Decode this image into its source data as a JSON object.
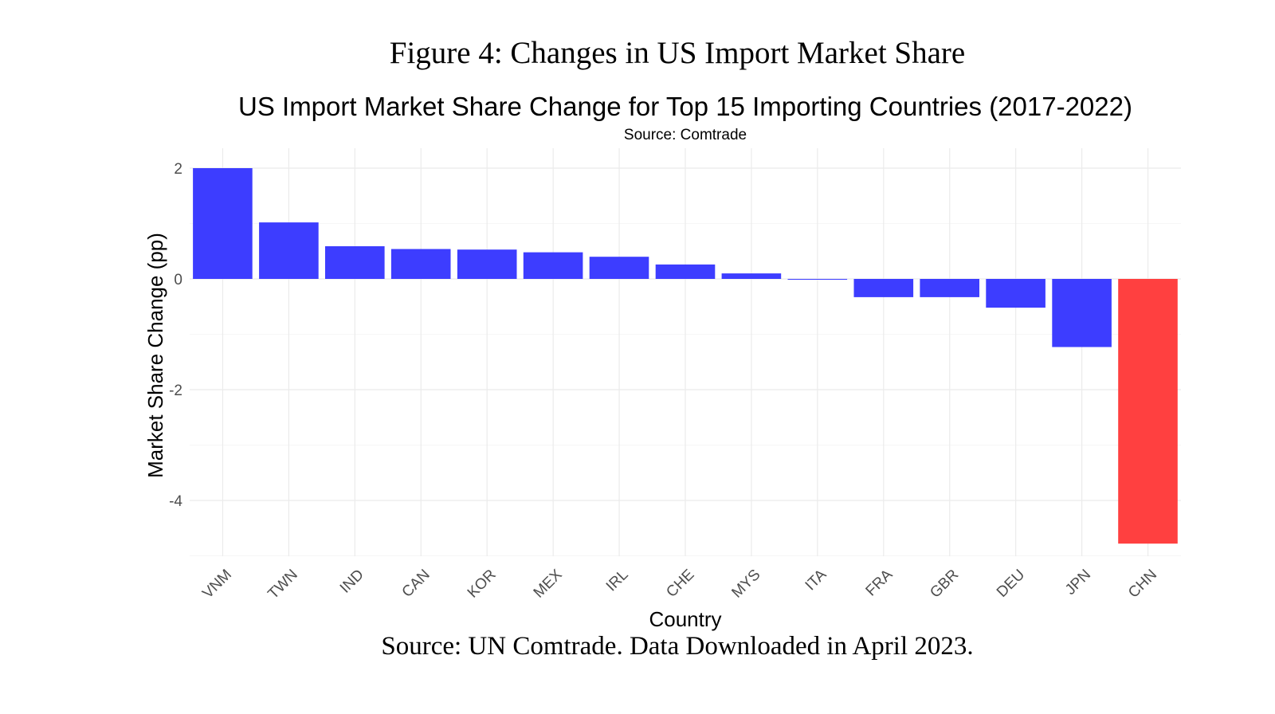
{
  "figure": {
    "title": "Figure 4: Changes in US Import Market Share",
    "caption": "Source: UN Comtrade. Data Downloaded in April 2023."
  },
  "chart_data": {
    "type": "bar",
    "title": "US Import Market Share Change for Top 15 Importing Countries (2017-2022)",
    "subtitle": "Source: Comtrade",
    "xlabel": "Country",
    "ylabel": "Market Share Change (pp)",
    "categories": [
      "VNM",
      "TWN",
      "IND",
      "CAN",
      "KOR",
      "MEX",
      "IRL",
      "CHE",
      "MYS",
      "ITA",
      "FRA",
      "GBR",
      "DEU",
      "JPN",
      "CHN"
    ],
    "values": [
      2.0,
      1.02,
      0.59,
      0.54,
      0.53,
      0.48,
      0.4,
      0.26,
      0.1,
      -0.01,
      -0.33,
      -0.33,
      -0.52,
      -1.23,
      -4.78
    ],
    "bar_colors": [
      "#3d3dff",
      "#3d3dff",
      "#3d3dff",
      "#3d3dff",
      "#3d3dff",
      "#3d3dff",
      "#3d3dff",
      "#3d3dff",
      "#3d3dff",
      "#3d3dff",
      "#3d3dff",
      "#3d3dff",
      "#3d3dff",
      "#3d3dff",
      "#ff4040"
    ],
    "yticks": [
      2,
      0,
      -2,
      -4
    ],
    "ytick_labels": [
      "2",
      "0",
      "-2",
      "-4"
    ],
    "ylim": [
      -5,
      2.2
    ],
    "grid": true,
    "legend": "none"
  }
}
